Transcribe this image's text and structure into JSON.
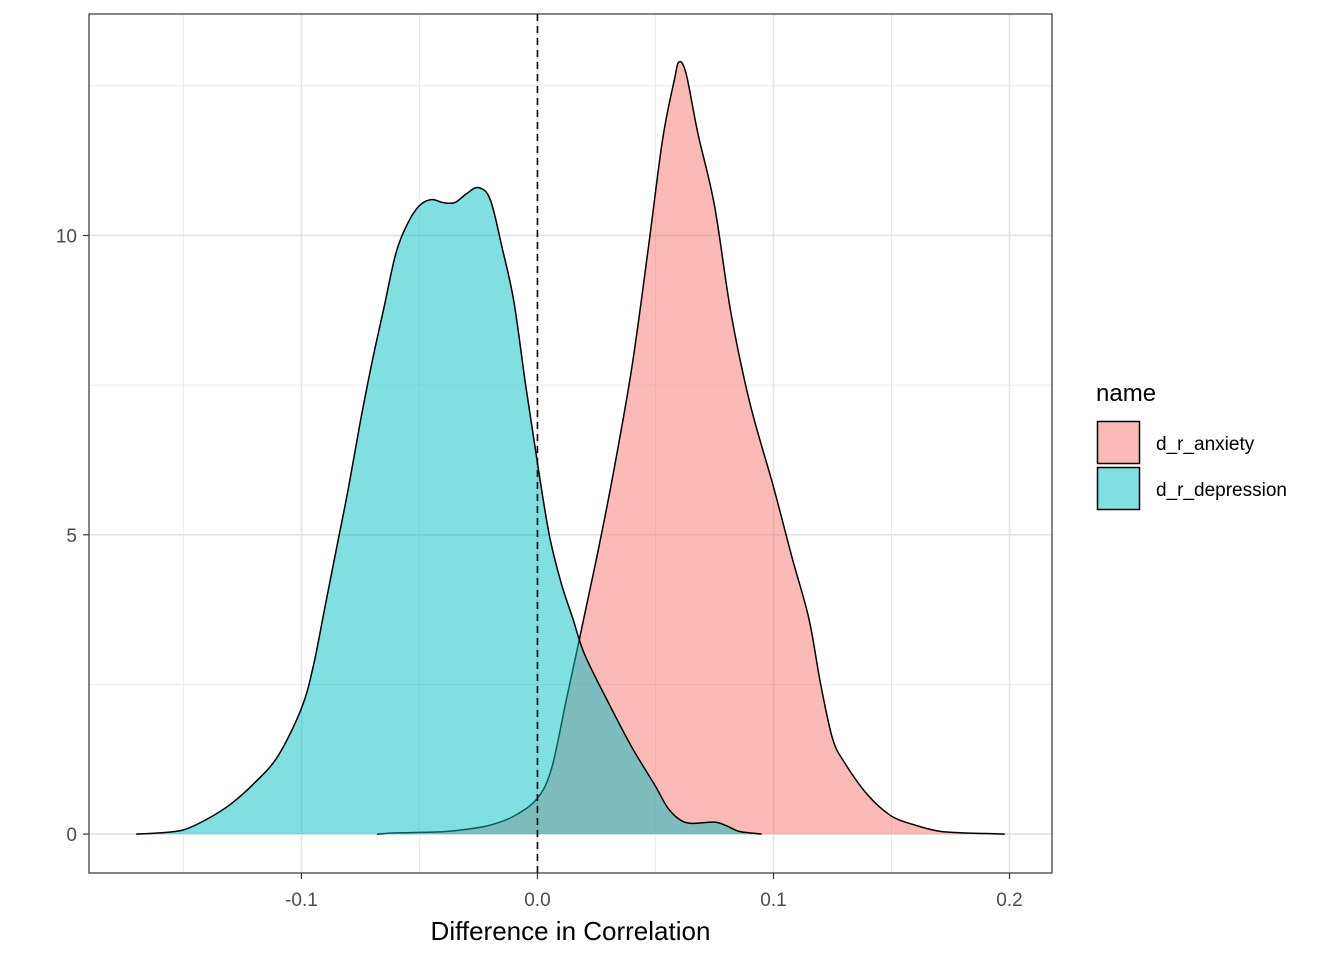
{
  "chart_data": {
    "type": "area",
    "title": "",
    "xlabel": "Difference in Correlation",
    "ylabel": "",
    "xlim": [
      -0.19,
      0.218
    ],
    "ylim": [
      -0.65,
      13.7
    ],
    "x_ticks": [
      -0.1,
      0.0,
      0.1,
      0.2
    ],
    "x_tick_labels": [
      "-0.1",
      "0.0",
      "0.1",
      "0.2"
    ],
    "y_ticks": [
      0,
      5,
      10
    ],
    "y_tick_labels": [
      "0",
      "5",
      "10"
    ],
    "grid": true,
    "vline": {
      "x": 0,
      "style": "dashed"
    },
    "legend": {
      "title": "name",
      "position": "right"
    },
    "series": [
      {
        "name": "d_r_anxiety",
        "color": "#F8766D",
        "points": [
          [
            -0.068,
            0.0
          ],
          [
            -0.06,
            0.02
          ],
          [
            -0.04,
            0.04
          ],
          [
            -0.03,
            0.08
          ],
          [
            -0.02,
            0.15
          ],
          [
            -0.01,
            0.3
          ],
          [
            0.0,
            0.6
          ],
          [
            0.006,
            1.1
          ],
          [
            0.012,
            2.2
          ],
          [
            0.018,
            3.3
          ],
          [
            0.025,
            4.6
          ],
          [
            0.032,
            6.0
          ],
          [
            0.04,
            7.8
          ],
          [
            0.047,
            9.8
          ],
          [
            0.053,
            11.6
          ],
          [
            0.058,
            12.6
          ],
          [
            0.06,
            12.9
          ],
          [
            0.063,
            12.7
          ],
          [
            0.068,
            11.7
          ],
          [
            0.075,
            10.5
          ],
          [
            0.082,
            8.7
          ],
          [
            0.09,
            7.2
          ],
          [
            0.1,
            5.8
          ],
          [
            0.108,
            4.6
          ],
          [
            0.115,
            3.6
          ],
          [
            0.12,
            2.5
          ],
          [
            0.125,
            1.6
          ],
          [
            0.13,
            1.2
          ],
          [
            0.14,
            0.65
          ],
          [
            0.15,
            0.3
          ],
          [
            0.16,
            0.15
          ],
          [
            0.17,
            0.05
          ],
          [
            0.18,
            0.02
          ],
          [
            0.19,
            0.01
          ],
          [
            0.198,
            0.0
          ]
        ]
      },
      {
        "name": "d_r_depression",
        "color": "#00BFC4",
        "points": [
          [
            -0.17,
            0.0
          ],
          [
            -0.16,
            0.02
          ],
          [
            -0.15,
            0.07
          ],
          [
            -0.14,
            0.25
          ],
          [
            -0.13,
            0.5
          ],
          [
            -0.12,
            0.85
          ],
          [
            -0.11,
            1.3
          ],
          [
            -0.1,
            2.1
          ],
          [
            -0.095,
            2.8
          ],
          [
            -0.09,
            3.8
          ],
          [
            -0.085,
            4.8
          ],
          [
            -0.08,
            5.8
          ],
          [
            -0.075,
            6.9
          ],
          [
            -0.07,
            7.9
          ],
          [
            -0.065,
            8.8
          ],
          [
            -0.06,
            9.7
          ],
          [
            -0.055,
            10.2
          ],
          [
            -0.05,
            10.5
          ],
          [
            -0.045,
            10.6
          ],
          [
            -0.04,
            10.55
          ],
          [
            -0.035,
            10.55
          ],
          [
            -0.03,
            10.7
          ],
          [
            -0.025,
            10.8
          ],
          [
            -0.02,
            10.6
          ],
          [
            -0.015,
            9.8
          ],
          [
            -0.01,
            8.9
          ],
          [
            -0.005,
            7.5
          ],
          [
            0.0,
            6.2
          ],
          [
            0.005,
            5.0
          ],
          [
            0.01,
            4.2
          ],
          [
            0.015,
            3.6
          ],
          [
            0.02,
            3.0
          ],
          [
            0.03,
            2.2
          ],
          [
            0.04,
            1.45
          ],
          [
            0.05,
            0.8
          ],
          [
            0.055,
            0.45
          ],
          [
            0.06,
            0.25
          ],
          [
            0.065,
            0.18
          ],
          [
            0.075,
            0.2
          ],
          [
            0.08,
            0.14
          ],
          [
            0.085,
            0.05
          ],
          [
            0.09,
            0.02
          ],
          [
            0.095,
            0.0
          ]
        ]
      }
    ]
  }
}
